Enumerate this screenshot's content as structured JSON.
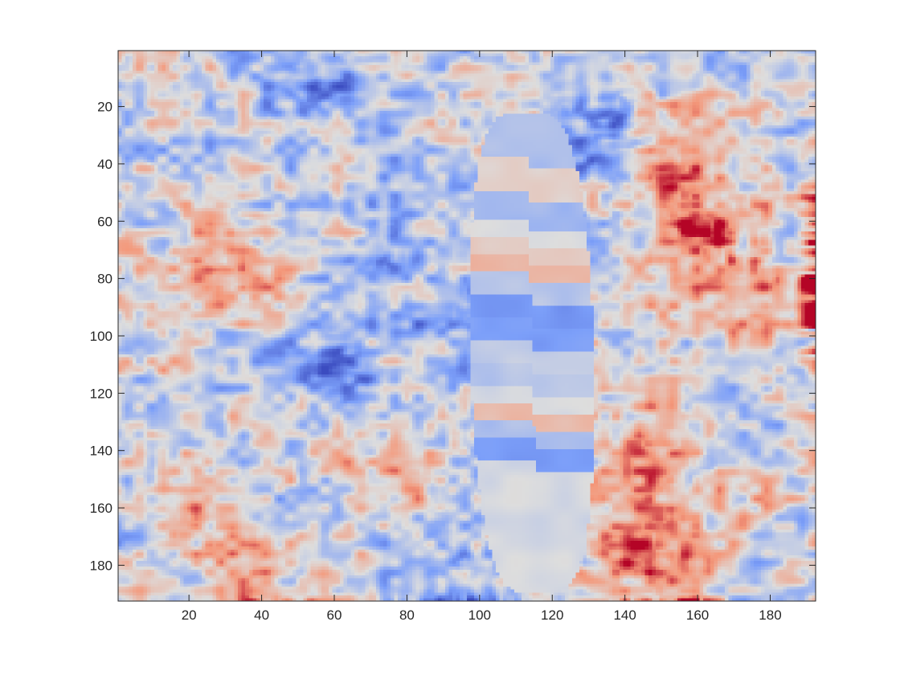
{
  "chart_data": {
    "type": "heatmap",
    "title": "",
    "xlabel": "",
    "ylabel": "",
    "colormap": "coolwarm",
    "colorbar": false,
    "grid": false,
    "xlim": [
      0.5,
      192.5
    ],
    "ylim": [
      0.5,
      192.5
    ],
    "y_reversed": true,
    "grid_size": [
      192,
      192
    ],
    "x_ticks": [
      20,
      40,
      60,
      80,
      100,
      120,
      140,
      160,
      180
    ],
    "y_ticks": [
      20,
      40,
      60,
      80,
      100,
      120,
      140,
      160,
      180
    ],
    "x_tick_labels": [
      "20",
      "40",
      "60",
      "80",
      "100",
      "120",
      "140",
      "160",
      "180"
    ],
    "y_tick_labels": [
      "20",
      "40",
      "60",
      "80",
      "100",
      "120",
      "140",
      "160",
      "180"
    ],
    "warm_regions": [
      {
        "x": 30,
        "y": 75,
        "strength": 0.55
      },
      {
        "x": 165,
        "y": 62,
        "strength": 0.6
      },
      {
        "x": 150,
        "y": 40,
        "strength": 0.5
      },
      {
        "x": 150,
        "y": 145,
        "strength": 0.65
      },
      {
        "x": 145,
        "y": 178,
        "strength": 0.7
      },
      {
        "x": 175,
        "y": 85,
        "strength": 0.45
      },
      {
        "x": 20,
        "y": 160,
        "strength": 0.35
      },
      {
        "x": 40,
        "y": 185,
        "strength": 0.4
      },
      {
        "x": 88,
        "y": 150,
        "strength": 0.3
      }
    ],
    "cool_regions": [
      {
        "x": 135,
        "y": 28,
        "strength": 0.75
      },
      {
        "x": 105,
        "y": 92,
        "strength": 0.6
      },
      {
        "x": 110,
        "y": 137,
        "strength": 0.55
      },
      {
        "x": 60,
        "y": 110,
        "strength": 0.4
      },
      {
        "x": 55,
        "y": 15,
        "strength": 0.45
      },
      {
        "x": 75,
        "y": 70,
        "strength": 0.35
      },
      {
        "x": 95,
        "y": 180,
        "strength": 0.35
      }
    ],
    "band_region": {
      "x_range": [
        99,
        132
      ],
      "y_range": [
        22,
        190
      ],
      "bands": [
        {
          "y": 24,
          "value": -0.25
        },
        {
          "y": 40,
          "value": 0.1
        },
        {
          "y": 52,
          "value": -0.3
        },
        {
          "y": 62,
          "value": 0.0
        },
        {
          "y": 68,
          "value": 0.15
        },
        {
          "y": 74,
          "value": 0.3
        },
        {
          "y": 80,
          "value": -0.2
        },
        {
          "y": 88,
          "value": -0.55
        },
        {
          "y": 96,
          "value": -0.5
        },
        {
          "y": 104,
          "value": -0.15
        },
        {
          "y": 112,
          "value": -0.2
        },
        {
          "y": 120,
          "value": -0.05
        },
        {
          "y": 126,
          "value": 0.25
        },
        {
          "y": 132,
          "value": -0.25
        },
        {
          "y": 138,
          "value": -0.5
        },
        {
          "y": 146,
          "value": -0.05
        }
      ]
    }
  }
}
